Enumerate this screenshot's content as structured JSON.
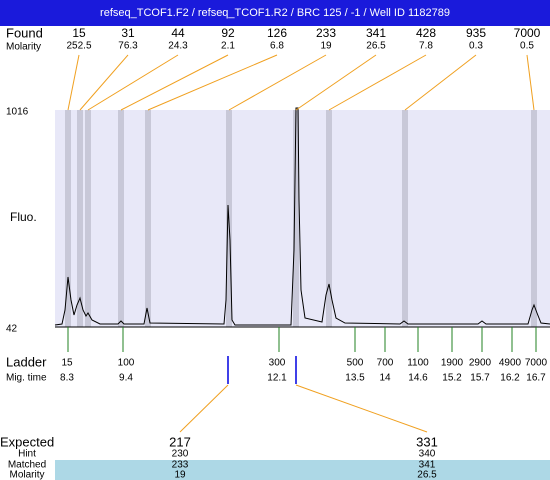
{
  "header": {
    "title": "refseq_TCOF1.F2 / refseq_TCOF1.R2 / BRC 125 / -1 / Well ID 1182789"
  },
  "found": {
    "label": "Found",
    "molarity_label": "Molarity",
    "sizes": [
      15,
      31,
      44,
      92,
      126,
      233,
      341,
      428,
      935,
      7000
    ],
    "molarity": [
      252.5,
      76.3,
      24.3,
      2.1,
      6.8,
      19,
      26.5,
      7.8,
      0.3,
      0.5
    ]
  },
  "y_axis": {
    "label": "Fluo.",
    "max": "1016",
    "min": "42"
  },
  "ladder": {
    "label": "Ladder",
    "mig_label": "Mig. time",
    "sizes": [
      15,
      100,
      300,
      500,
      700,
      1100,
      1900,
      2900,
      4900,
      7000
    ],
    "mig_times": [
      8.3,
      9.4,
      12.1,
      13.5,
      14,
      14.6,
      15.2,
      15.7,
      16.2,
      16.7
    ]
  },
  "expected": {
    "label": "Expected",
    "hint_label": "Hint",
    "matched_label": "Matched",
    "molarity_label": "Molarity",
    "peaks": [
      {
        "expected": 217,
        "hint": 230,
        "matched": 233,
        "molarity": 19
      },
      {
        "expected": 331,
        "hint": 340,
        "matched": 341,
        "molarity": 26.5
      }
    ]
  }
}
